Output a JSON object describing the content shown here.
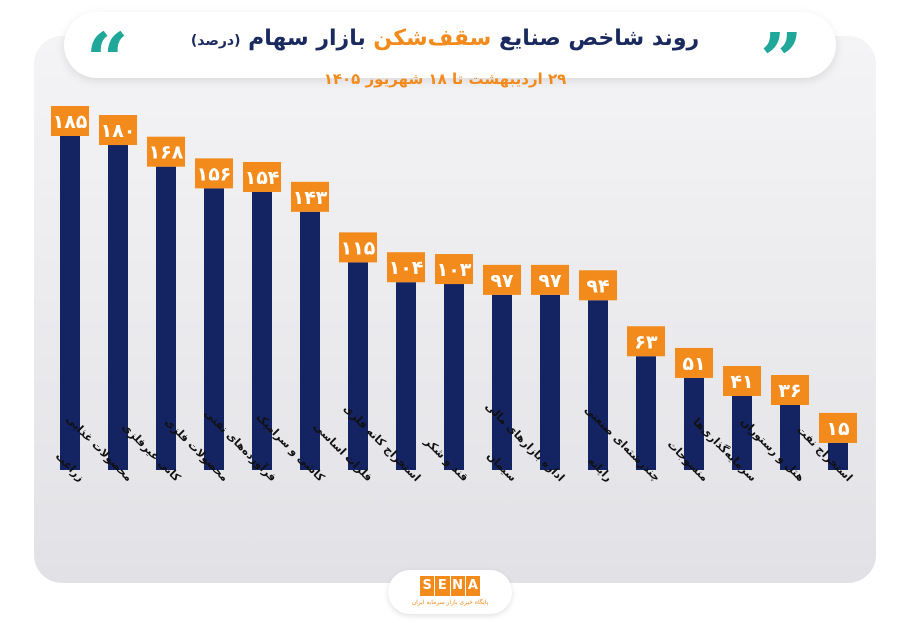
{
  "header": {
    "quote_left": "“",
    "quote_right": "”",
    "title_main": "روند شاخص صنایع ",
    "title_accent": "سقف‌شکن",
    "title_rest": " بازار سهام ",
    "title_unit": "(درصد)",
    "subtitle": "۲۹ اردیبهشت تا ۱۸ شهریور ۱۴۰۵"
  },
  "logo": {
    "letters": [
      "S",
      "E",
      "N",
      "A"
    ],
    "tagline": "پایگاه خبری بازار سرمایه ایران"
  },
  "colors": {
    "bar": "#142361",
    "label_bg": "#f28a1c",
    "label_text": "#ffffff",
    "title": "#1b2a5e",
    "accent": "#f28a1c",
    "quote": "#1fa79a"
  },
  "chart_data": {
    "type": "bar",
    "categories": [
      "زراعت",
      "محصولات غذایی",
      "کانی غیرفلزی",
      "محصولات فلزی",
      "فرآورده‌های نفتی",
      "کاشی و سرامیک",
      "فلزات اساسی",
      "استخراج کانه فلزی",
      "قند و شکر",
      "سیمان",
      "اداره بازارهای مالی",
      "رایانه",
      "چندرشته‌ای صنعتی",
      "منسوجات",
      "سرمایه‌گذاری‌ها",
      "هتل و رستوران",
      "استخراج نفت"
    ],
    "values": [
      185,
      180,
      168,
      156,
      154,
      143,
      115,
      104,
      103,
      97,
      97,
      94,
      63,
      51,
      41,
      36,
      15
    ],
    "value_labels": [
      "۱۸۵",
      "۱۸۰",
      "۱۶۸",
      "۱۵۶",
      "۱۵۴",
      "۱۴۳",
      "۱۱۵",
      "۱۰۴",
      "۱۰۳",
      "۹۷",
      "۹۷",
      "۹۴",
      "۶۳",
      "۵۱",
      "۴۱",
      "۳۶",
      "۱۵"
    ],
    "ylim": [
      0,
      185
    ],
    "grid": false,
    "legend": "none"
  }
}
